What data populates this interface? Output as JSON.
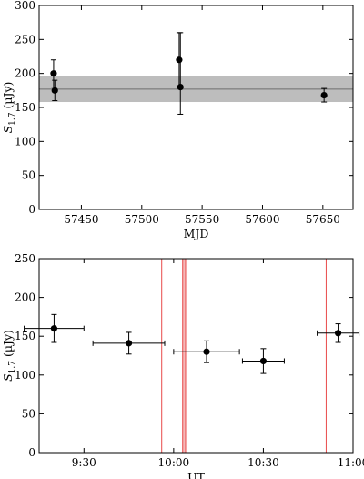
{
  "chart_data": [
    {
      "type": "scatter",
      "xlabel": "MJD",
      "ylabel_main": "S",
      "ylabel_sub": "1.7",
      "ylabel_unit": " (µJy)",
      "xlim": [
        57415,
        57675
      ],
      "ylim": [
        0,
        300
      ],
      "xticks": [
        57450,
        57500,
        57550,
        57600,
        57650
      ],
      "yticks": [
        0,
        50,
        100,
        150,
        200,
        250,
        300
      ],
      "points": [
        {
          "x": 57427,
          "y": 200,
          "yerr_lo": 20,
          "yerr_hi": 20
        },
        {
          "x": 57428,
          "y": 175,
          "yerr_lo": 15,
          "yerr_hi": 15
        },
        {
          "x": 57531,
          "y": 220,
          "yerr_lo": 40,
          "yerr_hi": 40
        },
        {
          "x": 57532,
          "y": 180,
          "yerr_lo": 40,
          "yerr_hi": 80
        },
        {
          "x": 57651,
          "y": 168,
          "yerr_lo": 10,
          "yerr_hi": 10
        }
      ],
      "mean_line": 177,
      "band": [
        158,
        196
      ],
      "colors": {
        "points": "#000000",
        "band": "#bdbdbd",
        "mean_line": "#6e6e6e"
      }
    },
    {
      "type": "scatter",
      "xlabel": "UT",
      "ylabel_main": "S",
      "ylabel_sub": "1.7",
      "ylabel_unit": " (µJy)",
      "xlim": [
        "9:15",
        "11:00"
      ],
      "ylim": [
        0,
        250
      ],
      "xticks": [
        "9:30",
        "10:00",
        "10:30",
        "11:00"
      ],
      "yticks": [
        0,
        50,
        100,
        150,
        200,
        250
      ],
      "points": [
        {
          "x": "9:20",
          "y": 160,
          "xerr": 10,
          "yerr": 18
        },
        {
          "x": "9:45",
          "y": 141,
          "xerr": 12,
          "yerr": 14
        },
        {
          "x": "10:11",
          "y": 130,
          "xerr": 11,
          "yerr": 14
        },
        {
          "x": "10:30",
          "y": 118,
          "xerr": 7,
          "yerr": 16
        },
        {
          "x": "10:55",
          "y": 154,
          "xerr": 7,
          "yerr": 12
        }
      ],
      "vlines": [
        "9:56",
        "10:03",
        "10:04",
        "10:51"
      ],
      "colors": {
        "points": "#000000",
        "vlines": "#e84a4a",
        "vband": "#f5b8b8"
      }
    }
  ]
}
